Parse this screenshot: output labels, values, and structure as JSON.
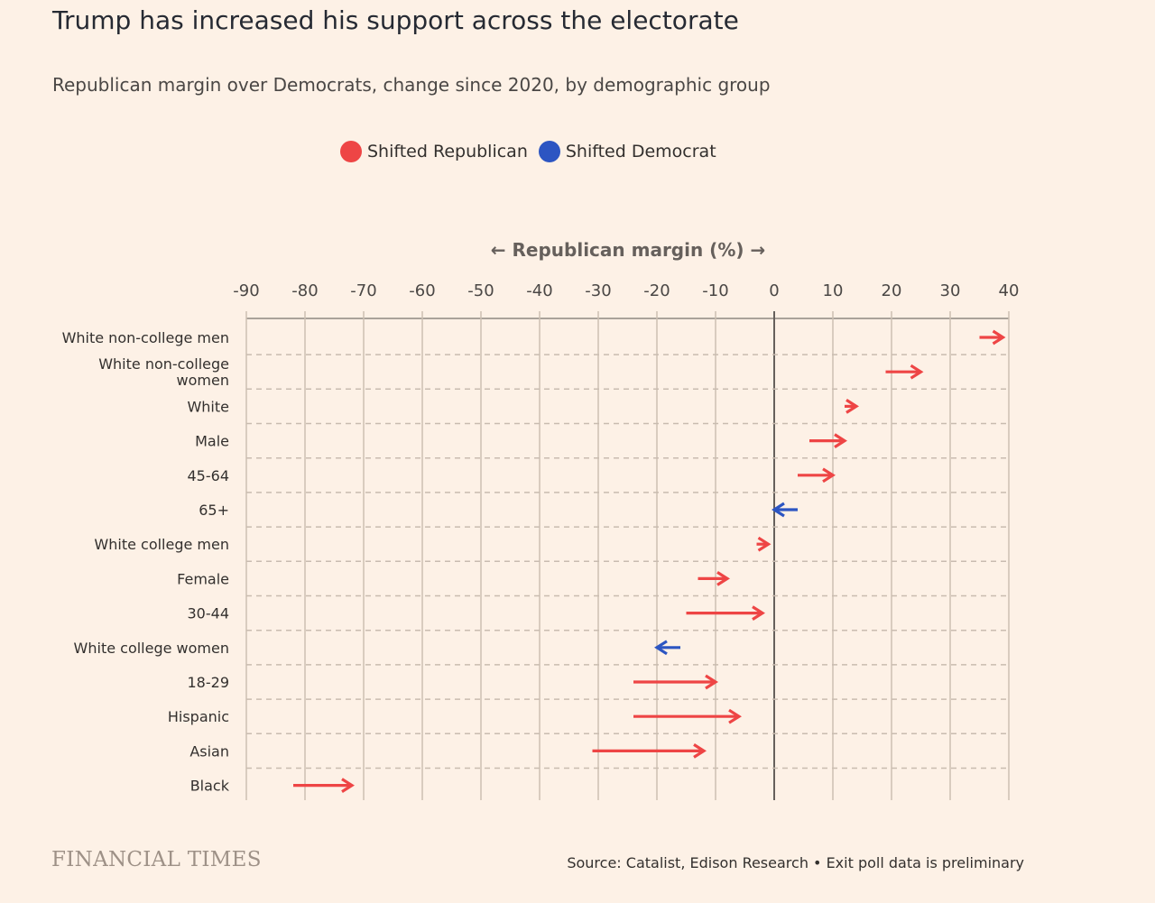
{
  "title": "Trump has increased his support across the electorate",
  "subtitle": "Republican margin over Democrats, change since 2020, by demographic group",
  "legend": [
    {
      "label": "Shifted Republican",
      "color": "#ee4545"
    },
    {
      "label": "Shifted Democrat",
      "color": "#2c55c2"
    }
  ],
  "brand": "FINANCIAL TIMES",
  "source": "Source: Catalist, Edison Research • Exit poll data is preliminary",
  "chart_data": {
    "type": "arrow",
    "title": "Trump has increased his support across the electorate",
    "subtitle": "Republican margin over Democrats, change since 2020, by demographic group",
    "xlabel": "← Republican margin (%) →",
    "xlim": [
      -90,
      40
    ],
    "xticks": [
      -90,
      -80,
      -70,
      -60,
      -50,
      -40,
      -30,
      -20,
      -10,
      0,
      10,
      20,
      30,
      40
    ],
    "grid": "vertical solid, horizontal dashed separators",
    "legend_placement": "top",
    "colors": {
      "republican": "#ee4545",
      "democrat": "#2c55c2"
    },
    "rows": [
      {
        "category": "White non-college men",
        "from": 35,
        "to": 39
      },
      {
        "category": "White non-college women",
        "from": 19,
        "to": 25
      },
      {
        "category": "White",
        "from": 12,
        "to": 14
      },
      {
        "category": "Male",
        "from": 6,
        "to": 12
      },
      {
        "category": "45-64",
        "from": 4,
        "to": 10
      },
      {
        "category": "65+",
        "from": 4,
        "to": 0
      },
      {
        "category": "White college men",
        "from": -3,
        "to": -1
      },
      {
        "category": "Female",
        "from": -13,
        "to": -8
      },
      {
        "category": "30-44",
        "from": -15,
        "to": -2
      },
      {
        "category": "White college women",
        "from": -16,
        "to": -20
      },
      {
        "category": "18-29",
        "from": -24,
        "to": -10
      },
      {
        "category": "Hispanic",
        "from": -24,
        "to": -6
      },
      {
        "category": "Asian",
        "from": -31,
        "to": -12
      },
      {
        "category": "Black",
        "from": -82,
        "to": -72
      }
    ]
  }
}
